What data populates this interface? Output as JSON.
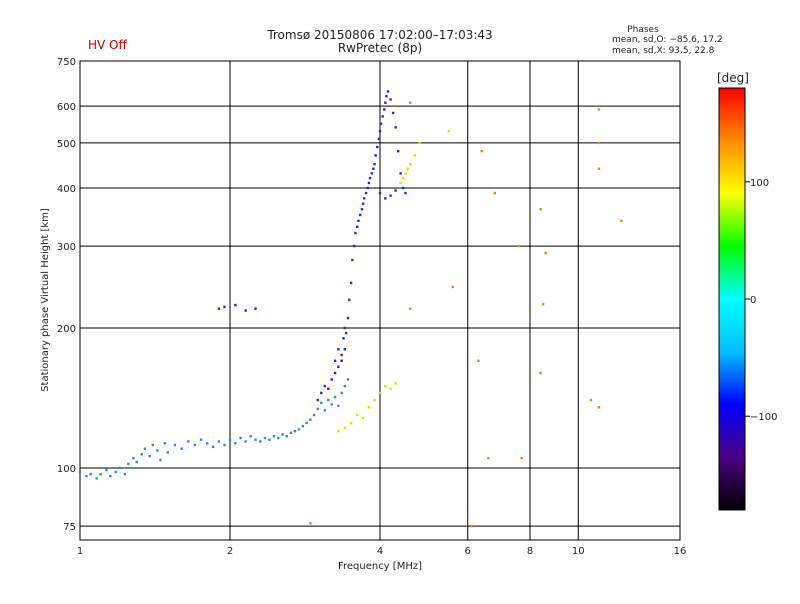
{
  "header": {
    "title": "Tromsø 20150806 17:02:00–17:03:43",
    "subtitle": "RwPretec (8p)",
    "status": "HV Off",
    "status_color": "#cc0000",
    "phases_title": "Phases",
    "phases_o": "mean, sd,O: −85.6, 17.2",
    "phases_x": "mean, sd,X:  93.5, 22.8"
  },
  "colorbar": {
    "label": "[deg]",
    "range": [
      -180,
      180
    ],
    "ticks": [
      {
        "value": 100,
        "label": "100"
      },
      {
        "value": 0,
        "label": "0"
      },
      {
        "value": -100,
        "label": "−100"
      }
    ],
    "colors": [
      "#000000",
      "#4b0082",
      "#0000ff",
      "#00bfff",
      "#00ffff",
      "#00ff00",
      "#ffff00",
      "#ff8c00",
      "#ff0000"
    ]
  },
  "chart_data": {
    "type": "scatter",
    "title": "Tromsø 20150806 17:02:00–17:03:43",
    "subtitle": "RwPretec (8p)",
    "xlabel": "Frequency [MHz]",
    "ylabel": "Stationary phase Virtual Height [km]",
    "xscale": "log",
    "yscale": "log",
    "xlim": [
      1,
      16
    ],
    "ylim": [
      70,
      750
    ],
    "xticks": [
      {
        "value": 1,
        "label": "1"
      },
      {
        "value": 2,
        "label": "2"
      },
      {
        "value": 4,
        "label": "4"
      },
      {
        "value": 6,
        "label": "6"
      },
      {
        "value": 8,
        "label": "8"
      },
      {
        "value": 10,
        "label": "10"
      },
      {
        "value": 16,
        "label": "16"
      }
    ],
    "yticks": [
      {
        "value": 75,
        "label": "75"
      },
      {
        "value": 100,
        "label": "100"
      },
      {
        "value": 200,
        "label": "200"
      },
      {
        "value": 300,
        "label": "300"
      },
      {
        "value": 400,
        "label": "400"
      },
      {
        "value": 500,
        "label": "500"
      },
      {
        "value": 600,
        "label": "600"
      },
      {
        "value": 750,
        "label": "750"
      }
    ],
    "grid": true,
    "series": [
      {
        "points": [
          [
            1.0,
            98
          ],
          [
            1.03,
            96
          ],
          [
            1.05,
            97
          ],
          [
            1.08,
            95
          ],
          [
            1.1,
            97
          ],
          [
            1.13,
            99
          ],
          [
            1.15,
            96
          ],
          [
            1.18,
            98
          ],
          [
            1.2,
            100
          ],
          [
            1.23,
            97
          ],
          [
            1.25,
            102
          ],
          [
            1.28,
            105
          ],
          [
            1.3,
            103
          ],
          [
            1.33,
            107
          ],
          [
            1.35,
            110
          ],
          [
            1.38,
            106
          ],
          [
            1.4,
            112
          ],
          [
            1.43,
            109
          ],
          [
            1.45,
            104
          ],
          [
            1.48,
            113
          ],
          [
            1.5,
            108
          ],
          [
            1.55,
            112
          ],
          [
            1.6,
            110
          ],
          [
            1.65,
            114
          ],
          [
            1.7,
            112
          ],
          [
            1.75,
            115
          ],
          [
            1.8,
            113
          ],
          [
            1.85,
            111
          ],
          [
            1.9,
            114
          ],
          [
            1.95,
            112
          ],
          [
            2.0,
            115
          ],
          [
            2.05,
            113
          ],
          [
            2.1,
            116
          ],
          [
            2.15,
            114
          ],
          [
            2.2,
            117
          ],
          [
            2.25,
            115
          ],
          [
            2.3,
            114
          ],
          [
            2.35,
            116
          ],
          [
            2.4,
            115
          ],
          [
            2.45,
            117
          ],
          [
            2.5,
            116
          ],
          [
            2.55,
            118
          ],
          [
            2.6,
            117
          ],
          [
            2.65,
            119
          ],
          [
            2.7,
            120
          ],
          [
            2.75,
            121
          ],
          [
            2.8,
            123
          ],
          [
            2.85,
            125
          ],
          [
            2.9,
            127
          ],
          [
            2.95,
            130
          ],
          [
            3.0,
            134
          ],
          [
            3.05,
            138
          ],
          [
            3.1,
            133
          ],
          [
            3.15,
            140
          ],
          [
            3.2,
            137
          ],
          [
            3.25,
            142
          ],
          [
            3.3,
            136
          ],
          [
            3.35,
            145
          ],
          [
            3.4,
            150
          ],
          [
            3.45,
            155
          ]
        ]
      },
      {
        "points": [
          [
            3.0,
            140
          ],
          [
            3.05,
            145
          ],
          [
            3.1,
            150
          ],
          [
            3.15,
            148
          ],
          [
            3.2,
            155
          ],
          [
            3.25,
            160
          ],
          [
            3.3,
            165
          ],
          [
            3.35,
            170
          ],
          [
            3.4,
            180
          ],
          [
            3.42,
            195
          ],
          [
            3.45,
            210
          ],
          [
            3.47,
            230
          ],
          [
            3.5,
            250
          ],
          [
            3.52,
            280
          ],
          [
            3.55,
            300
          ],
          [
            3.57,
            320
          ],
          [
            3.6,
            330
          ],
          [
            3.62,
            340
          ],
          [
            3.65,
            350
          ],
          [
            3.68,
            360
          ],
          [
            3.7,
            370
          ],
          [
            3.72,
            380
          ],
          [
            3.75,
            390
          ],
          [
            3.78,
            400
          ],
          [
            3.8,
            410
          ],
          [
            3.82,
            420
          ],
          [
            3.85,
            430
          ],
          [
            3.88,
            440
          ],
          [
            3.9,
            450
          ],
          [
            3.92,
            470
          ],
          [
            3.95,
            490
          ],
          [
            3.98,
            510
          ],
          [
            4.0,
            530
          ],
          [
            4.02,
            550
          ],
          [
            4.05,
            570
          ],
          [
            4.08,
            590
          ],
          [
            4.1,
            610
          ],
          [
            4.12,
            630
          ],
          [
            4.15,
            645
          ],
          [
            4.2,
            620
          ],
          [
            4.25,
            580
          ],
          [
            4.3,
            540
          ],
          [
            4.35,
            480
          ],
          [
            4.4,
            430
          ],
          [
            4.45,
            400
          ],
          [
            4.5,
            390
          ],
          [
            4.3,
            395
          ],
          [
            4.2,
            385
          ],
          [
            4.1,
            380
          ],
          [
            4.0,
            390
          ],
          [
            1.9,
            220
          ],
          [
            1.95,
            222
          ],
          [
            2.05,
            224
          ],
          [
            2.15,
            218
          ],
          [
            2.25,
            220
          ],
          [
            3.3,
            180
          ],
          [
            3.35,
            175
          ],
          [
            3.25,
            170
          ],
          [
            3.38,
            190
          ],
          [
            3.4,
            200
          ]
        ]
      },
      {
        "points": [
          [
            3.3,
            120
          ],
          [
            3.4,
            122
          ],
          [
            3.5,
            125
          ],
          [
            3.6,
            130
          ],
          [
            3.7,
            128
          ],
          [
            3.8,
            135
          ],
          [
            3.9,
            140
          ],
          [
            4.0,
            145
          ],
          [
            4.1,
            150
          ],
          [
            4.2,
            148
          ],
          [
            4.3,
            152
          ],
          [
            4.4,
            410
          ],
          [
            4.45,
            420
          ],
          [
            4.5,
            430
          ],
          [
            4.55,
            440
          ],
          [
            4.6,
            450
          ],
          [
            4.7,
            470
          ],
          [
            4.8,
            500
          ],
          [
            5.5,
            530
          ]
        ]
      },
      {
        "points": [
          [
            4.6,
            610
          ],
          [
            4.6,
            220
          ],
          [
            5.6,
            245
          ],
          [
            6.4,
            480
          ],
          [
            6.3,
            170
          ],
          [
            6.8,
            390
          ],
          [
            6.6,
            105
          ],
          [
            7.6,
            300
          ],
          [
            7.7,
            105
          ],
          [
            8.4,
            360
          ],
          [
            8.5,
            225
          ],
          [
            8.6,
            290
          ],
          [
            8.4,
            160
          ],
          [
            10.6,
            140
          ],
          [
            11.0,
            590
          ],
          [
            11.0,
            500
          ],
          [
            11.0,
            440
          ],
          [
            11.0,
            135
          ],
          [
            12.2,
            340
          ],
          [
            6.1,
            75
          ],
          [
            2.9,
            76
          ]
        ]
      }
    ]
  }
}
